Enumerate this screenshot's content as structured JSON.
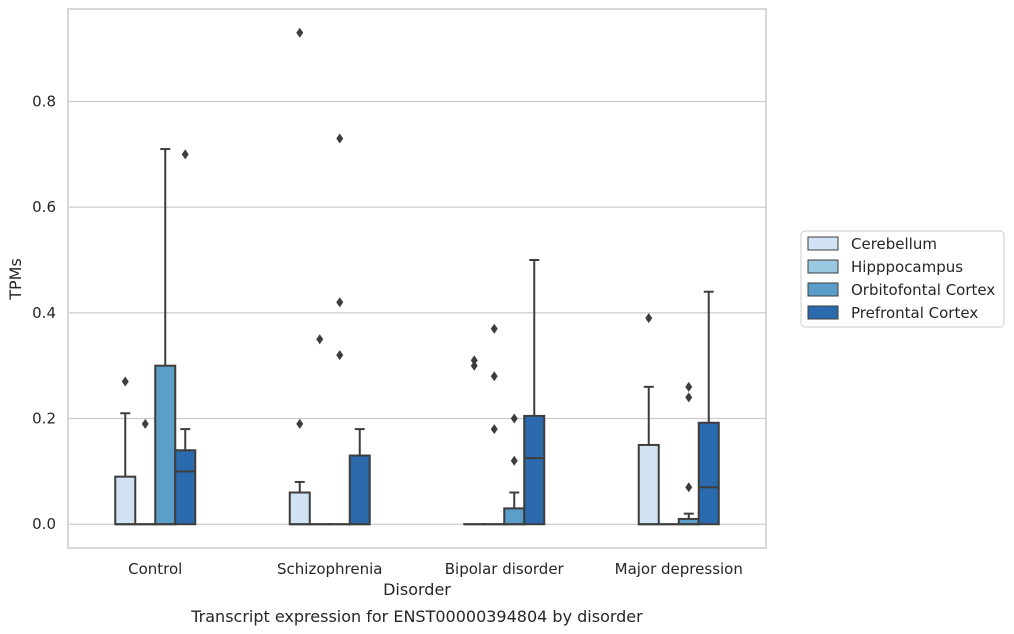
{
  "chart_data": {
    "type": "box",
    "caption": "Transcript expression for ENST00000394804 by disorder",
    "xlabel": "Disorder",
    "ylabel": "TPMs",
    "ylim": [
      -0.045,
      0.975
    ],
    "yticks": [
      0.0,
      0.2,
      0.4,
      0.6,
      0.8
    ],
    "ytick_labels": [
      "0.0",
      "0.2",
      "0.4",
      "0.6",
      "0.8"
    ],
    "grid": "horizontal",
    "legend_position": "right",
    "categories": [
      "Control",
      "Schizophrenia",
      "Bipolar disorder",
      "Major depression"
    ],
    "series": [
      {
        "name": "Cerebellum",
        "color": "#d1e2f2",
        "boxes": [
          {
            "q1": 0.0,
            "median": 0.0,
            "q3": 0.09,
            "whisker_low": 0.0,
            "whisker_high": 0.21,
            "outliers": [
              0.27
            ]
          },
          {
            "q1": 0.0,
            "median": 0.0,
            "q3": 0.06,
            "whisker_low": 0.0,
            "whisker_high": 0.08,
            "outliers": [
              0.19,
              0.93
            ]
          },
          {
            "q1": 0.0,
            "median": 0.0,
            "q3": 0.0,
            "whisker_low": 0.0,
            "whisker_high": 0.0,
            "outliers": [
              0.3,
              0.31
            ]
          },
          {
            "q1": 0.0,
            "median": 0.0,
            "q3": 0.15,
            "whisker_low": 0.0,
            "whisker_high": 0.26,
            "outliers": [
              0.39
            ]
          }
        ]
      },
      {
        "name": "Hipppocampus",
        "color": "#9ac8e0",
        "boxes": [
          {
            "q1": 0.0,
            "median": 0.0,
            "q3": 0.0,
            "whisker_low": 0.0,
            "whisker_high": 0.0,
            "outliers": [
              0.19
            ]
          },
          {
            "q1": 0.0,
            "median": 0.0,
            "q3": 0.0,
            "whisker_low": 0.0,
            "whisker_high": 0.0,
            "outliers": [
              0.35
            ]
          },
          {
            "q1": 0.0,
            "median": 0.0,
            "q3": 0.0,
            "whisker_low": 0.0,
            "whisker_high": 0.0,
            "outliers": [
              0.18,
              0.28,
              0.37
            ]
          },
          {
            "q1": 0.0,
            "median": 0.0,
            "q3": 0.0,
            "whisker_low": 0.0,
            "whisker_high": 0.0,
            "outliers": []
          }
        ]
      },
      {
        "name": "Orbitofontal Cortex",
        "color": "#5a9ec9",
        "boxes": [
          {
            "q1": 0.0,
            "median": 0.0,
            "q3": 0.3,
            "whisker_low": 0.0,
            "whisker_high": 0.71,
            "outliers": []
          },
          {
            "q1": 0.0,
            "median": 0.0,
            "q3": 0.0,
            "whisker_low": 0.0,
            "whisker_high": 0.0,
            "outliers": [
              0.32,
              0.42,
              0.73
            ]
          },
          {
            "q1": 0.0,
            "median": 0.0,
            "q3": 0.03,
            "whisker_low": 0.0,
            "whisker_high": 0.06,
            "outliers": [
              0.12,
              0.2
            ]
          },
          {
            "q1": 0.0,
            "median": 0.0,
            "q3": 0.01,
            "whisker_low": 0.0,
            "whisker_high": 0.02,
            "outliers": [
              0.07,
              0.24,
              0.26
            ]
          }
        ]
      },
      {
        "name": "Prefrontal Cortex",
        "color": "#2a6aad",
        "boxes": [
          {
            "q1": 0.0,
            "median": 0.1,
            "q3": 0.14,
            "whisker_low": 0.0,
            "whisker_high": 0.18,
            "outliers": [
              0.7
            ]
          },
          {
            "q1": 0.0,
            "median": 0.0,
            "q3": 0.13,
            "whisker_low": 0.0,
            "whisker_high": 0.18,
            "outliers": []
          },
          {
            "q1": 0.0,
            "median": 0.125,
            "q3": 0.205,
            "whisker_low": 0.0,
            "whisker_high": 0.5,
            "outliers": []
          },
          {
            "q1": 0.0,
            "median": 0.07,
            "q3": 0.192,
            "whisker_low": 0.0,
            "whisker_high": 0.44,
            "outliers": []
          }
        ]
      }
    ]
  }
}
